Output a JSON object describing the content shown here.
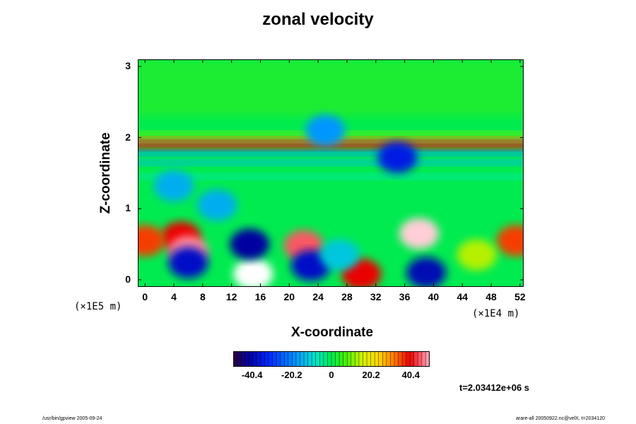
{
  "chart_data": {
    "type": "heatmap",
    "title": "zonal velocity",
    "xlabel": "X-coordinate",
    "ylabel": "Z-coordinate",
    "x_unit": "(×1E5 m)",
    "x_unit_right": "(×1E4 m)",
    "xlim": [
      -1,
      52.5
    ],
    "ylim": [
      -0.1,
      3.1
    ],
    "x_ticks": [
      "0",
      "4",
      "8",
      "12",
      "16",
      "20",
      "24",
      "28",
      "32",
      "36",
      "40",
      "44",
      "48",
      "52"
    ],
    "y_ticks": [
      "0",
      "1",
      "2",
      "3"
    ],
    "colorbar": {
      "min": -50,
      "max": 50,
      "tick_values": [
        -40.4,
        -20.2,
        0,
        20.2,
        40.4
      ],
      "tick_labels": [
        "-40.4",
        "-20.2",
        "0",
        "20.2",
        "40.4"
      ]
    },
    "field_background": 0,
    "upper_region": {
      "z_from": 2.3,
      "value": 3
    },
    "layers": [
      {
        "z": 2.05,
        "value": 10
      },
      {
        "z": 1.97,
        "value": 32
      },
      {
        "z": 1.92,
        "value": 42
      },
      {
        "z": 1.86,
        "value": 40
      },
      {
        "z": 1.78,
        "value": -18
      },
      {
        "z": 1.65,
        "value": -14
      },
      {
        "z": 1.45,
        "value": -6
      }
    ],
    "features": [
      {
        "x": 5,
        "z": 0.6,
        "value": 40
      },
      {
        "x": 0,
        "z": 0.55,
        "value": 36
      },
      {
        "x": 51.5,
        "z": 0.55,
        "value": 36
      },
      {
        "x": 6,
        "z": 0.4,
        "value": 48
      },
      {
        "x": 6,
        "z": 0.24,
        "value": -38
      },
      {
        "x": 15,
        "z": 0.08,
        "value": 55
      },
      {
        "x": 14.5,
        "z": 0.5,
        "value": -42
      },
      {
        "x": 22,
        "z": 0.48,
        "value": 45
      },
      {
        "x": 23,
        "z": 0.2,
        "value": -38
      },
      {
        "x": 30,
        "z": 0.08,
        "value": 40
      },
      {
        "x": 38,
        "z": 0.65,
        "value": 52
      },
      {
        "x": 39,
        "z": 0.1,
        "value": -40
      },
      {
        "x": 10,
        "z": 1.05,
        "value": -15
      },
      {
        "x": 35,
        "z": 1.72,
        "value": -35
      },
      {
        "x": 4,
        "z": 1.32,
        "value": -15
      },
      {
        "x": 27,
        "z": 0.35,
        "value": -12
      },
      {
        "x": 46,
        "z": 0.35,
        "value": 14
      },
      {
        "x": 25,
        "z": 2.1,
        "value": -18
      }
    ]
  },
  "annotations": {
    "time": "t=2.03412e+06 s",
    "footer_left": "/usr/bin/gpview 2005-09-24",
    "footer_right": "arare-all 20050922.nc@velX, t=2034120"
  }
}
